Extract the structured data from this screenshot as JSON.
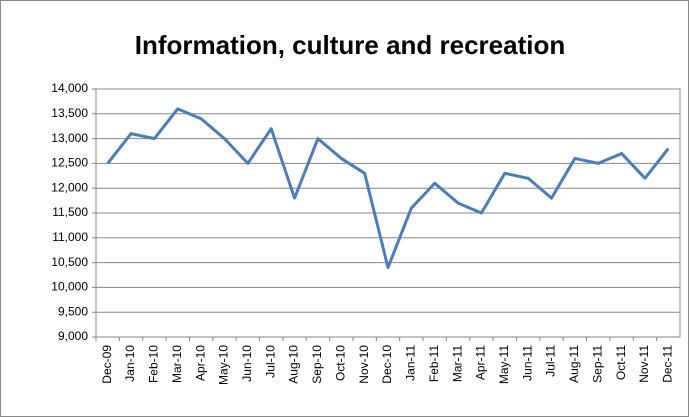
{
  "chart_data": {
    "type": "line",
    "title": "Information, culture and recreation",
    "categories": [
      "Dec-09",
      "Jan-10",
      "Feb-10",
      "Mar-10",
      "Apr-10",
      "May-10",
      "Jun-10",
      "Jul-10",
      "Aug-10",
      "Sep-10",
      "Oct-10",
      "Nov-10",
      "Dec-10",
      "Jan-11",
      "Feb-11",
      "Mar-11",
      "Apr-11",
      "May-11",
      "Jun-11",
      "Jul-11",
      "Aug-11",
      "Sep-11",
      "Oct-11",
      "Nov-11",
      "Dec-11"
    ],
    "values": [
      12500,
      13100,
      13000,
      13600,
      13400,
      13000,
      12500,
      13200,
      11800,
      13000,
      12600,
      12300,
      10400,
      11600,
      12100,
      11700,
      11500,
      12300,
      12200,
      11800,
      12600,
      12500,
      12700,
      12200,
      12800
    ],
    "color": "#4a7ebb",
    "ylim": [
      9000,
      14000
    ],
    "yticks": [
      {
        "value": 9000,
        "label": "9,000"
      },
      {
        "value": 9500,
        "label": "9,500"
      },
      {
        "value": 10000,
        "label": "10,000"
      },
      {
        "value": 10500,
        "label": "10,500"
      },
      {
        "value": 11000,
        "label": "11,000"
      },
      {
        "value": 11500,
        "label": "11,500"
      },
      {
        "value": 12000,
        "label": "12,000"
      },
      {
        "value": 12500,
        "label": "12,500"
      },
      {
        "value": 13000,
        "label": "13,000"
      },
      {
        "value": 13500,
        "label": "13,500"
      },
      {
        "value": 14000,
        "label": "14,000"
      }
    ],
    "grid": true
  }
}
